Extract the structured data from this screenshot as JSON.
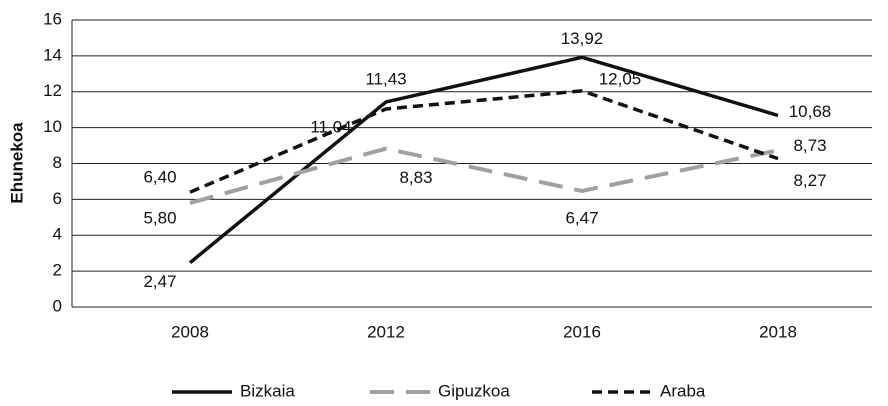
{
  "chart_data": {
    "type": "line",
    "y_label": "Ehunekoa",
    "categories": [
      "2008",
      "2012",
      "2016",
      "2018"
    ],
    "series": [
      {
        "name": "Bizkaia",
        "color": "#111111",
        "values": [
          2.47,
          11.43,
          13.92,
          10.68
        ],
        "value_labels": [
          "2,47",
          "11,43",
          "13,92",
          "10,68"
        ]
      },
      {
        "name": "Gipuzkoa",
        "color": "#a0a0a0",
        "values": [
          5.8,
          8.83,
          6.47,
          8.73
        ],
        "value_labels": [
          "5,80",
          "8,83",
          "6,47",
          "8,73"
        ]
      },
      {
        "name": "Araba",
        "color": "#111111",
        "values": [
          6.4,
          11.04,
          12.05,
          8.27
        ],
        "value_labels": [
          "6,40",
          "11,04",
          "12,05",
          "8,27"
        ]
      }
    ],
    "ylim": [
      0,
      16
    ],
    "yticks": [
      0,
      2,
      4,
      6,
      8,
      10,
      12,
      14,
      16
    ],
    "grid": true,
    "legend": "bottom"
  }
}
